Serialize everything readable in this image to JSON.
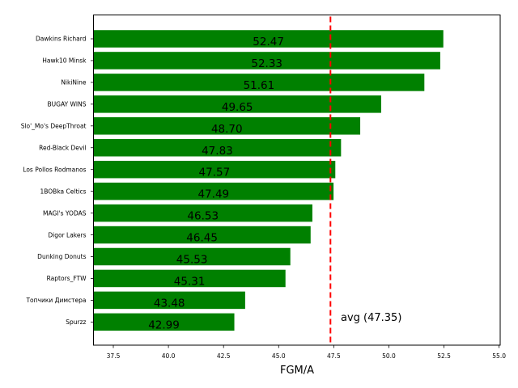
{
  "chart_data": {
    "type": "bar",
    "orientation": "horizontal",
    "title": "",
    "xlabel": "FGM/A",
    "ylabel": "",
    "xlim": [
      36.6,
      55.05
    ],
    "xticks": [
      "37.5",
      "40.0",
      "42.5",
      "45.0",
      "47.5",
      "50.0",
      "52.5",
      "55.0"
    ],
    "grid": false,
    "bar_color": "#008000",
    "categories": [
      "Dawkins Richard",
      "Hawk10 Minsk",
      "NikiNine",
      "BUGAY WINS",
      "Slo'_Mo's DeepThroat",
      "Red-Black Devil",
      "Los Pollos Rodmanos",
      "1BOBka Celtics",
      "MAGI's YODAS",
      "Digor Lakers",
      "Dunking Donuts",
      "Raptors_FTW",
      "Топчики Димстера",
      "Spurzz"
    ],
    "values": [
      52.47,
      52.33,
      51.61,
      49.65,
      48.7,
      47.83,
      47.57,
      47.49,
      46.53,
      46.45,
      45.53,
      45.31,
      43.48,
      42.99
    ],
    "value_labels": [
      "52.47",
      "52.33",
      "51.61",
      "49.65",
      "48.70",
      "47.83",
      "47.57",
      "47.49",
      "46.53",
      "46.45",
      "45.53",
      "45.31",
      "43.48",
      "42.99"
    ],
    "reference_line": {
      "value": 47.35,
      "style": "dashed",
      "color": "#ff0000",
      "label": "avg (47.35)"
    }
  }
}
